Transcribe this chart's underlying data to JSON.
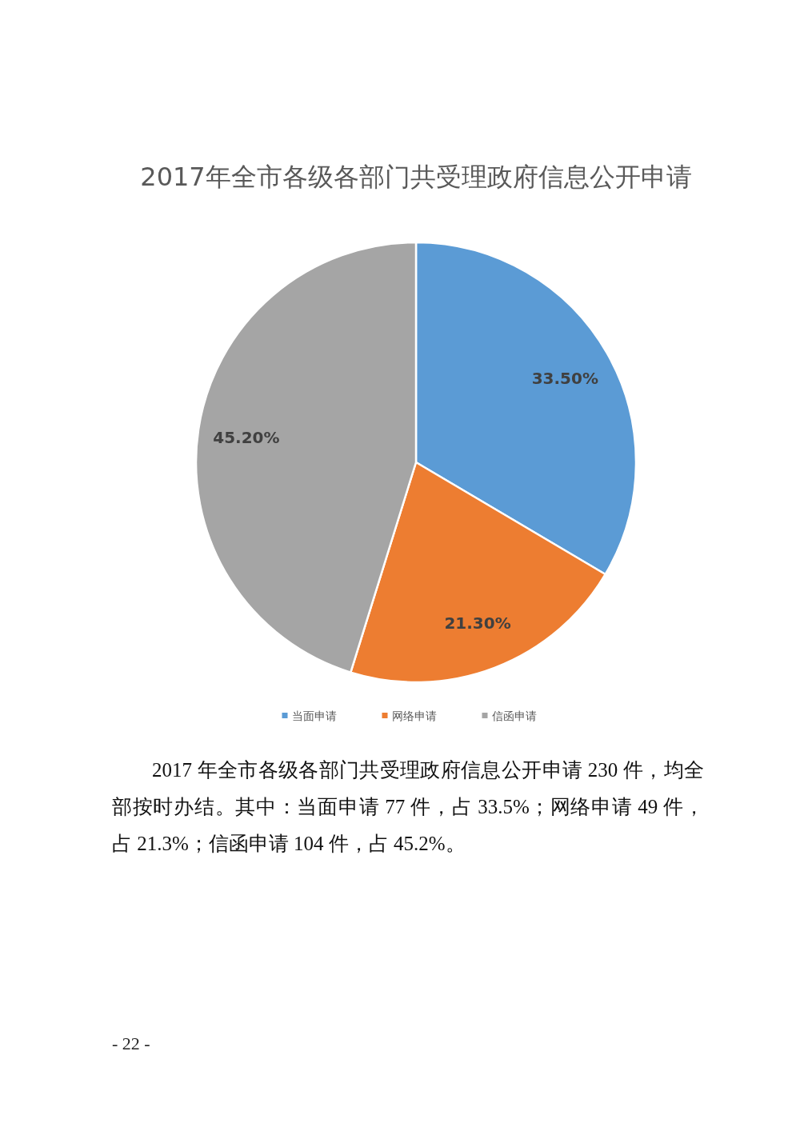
{
  "chart_data": {
    "type": "pie",
    "title": "2017年全市各级各部门共受理政府信息公开申请",
    "categories": [
      "当面申请",
      "网络申请",
      "信函申请"
    ],
    "values": [
      33.5,
      21.3,
      45.2
    ],
    "colors": [
      "#5b9bd5",
      "#ed7d31",
      "#a5a5a5"
    ],
    "value_labels": [
      "33.50%",
      "21.30%",
      "45.20%"
    ],
    "legend": "bottom",
    "annotations": [
      "2017 年全市各级各部门共受理政府信息公开申请 230 件，均全部按时办结。其中：当面申请 77 件，占 33.5%；网络申请 49 件，占 21.3%；信函申请 104 件，占 45.2%。",
      "- 22 -"
    ]
  }
}
